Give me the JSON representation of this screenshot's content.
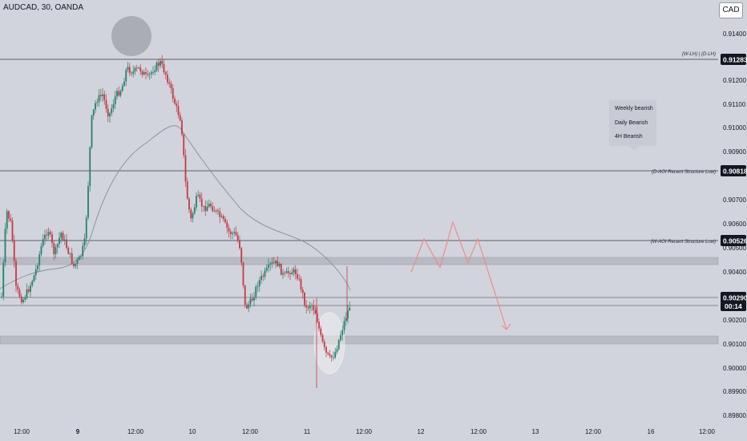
{
  "header": {
    "symbol_line": "AUDCAD, 30, OANDA",
    "currency_button": "CAD"
  },
  "colors": {
    "background": "#d1d4dc",
    "candle_up": "#26806b",
    "candle_down": "#c43a43",
    "moving_average": "#8a8d94",
    "zone_fill": "#b2b5be",
    "price_badge": "#131722",
    "projection_path": "#f28b8b",
    "highlight_circle": "#a3a6ad",
    "highlight_ellipse": "#f0f1f4"
  },
  "price_axis": {
    "ticks": [
      "0.91400",
      "0.91200",
      "0.91100",
      "0.91000",
      "0.90900",
      "0.90700",
      "0.90600",
      "0.90500",
      "0.90400",
      "0.90200",
      "0.90100",
      "0.90000",
      "0.89900",
      "0.89800"
    ],
    "current_price": "0.90290",
    "countdown": "00:14"
  },
  "time_axis": {
    "ticks": [
      "12:00",
      "9",
      "12:00",
      "10",
      "12:00",
      "11",
      "12:00",
      "12",
      "12:00",
      "13",
      "12:00",
      "16",
      "12:00"
    ]
  },
  "horizontal_lines": [
    {
      "label": "(W-LH) | (D-LH)",
      "price": "0.91283"
    },
    {
      "label": "(D-AOI Recent Structure Low)",
      "price": "0.90818"
    },
    {
      "label": "(W-AOI Recent Structure Low)",
      "price": "0.90526"
    }
  ],
  "zones": [
    {
      "from": 0.90448,
      "to": 0.90465
    },
    {
      "from": 0.90118,
      "to": 0.90135
    }
  ],
  "bias_note": [
    "Weekly bearish",
    "Daily Bearish",
    "4H Bearish"
  ],
  "chart_data": {
    "type": "candlestick",
    "symbol": "AUDCAD",
    "timeframe": "30",
    "source": "OANDA",
    "ylim": [
      0.8978,
      0.9147
    ],
    "projection_path": [
      {
        "x": "12 ~02:00",
        "y": 0.904
      },
      {
        "x": "12 ~06:00",
        "y": 0.9054
      },
      {
        "x": "12 ~09:00",
        "y": 0.9042
      },
      {
        "x": "12 ~14:00",
        "y": 0.9061
      },
      {
        "x": "12 ~17:00",
        "y": 0.9044
      },
      {
        "x": "12 ~20:00",
        "y": 0.9054
      },
      {
        "x": "13 ~03:00",
        "y": 0.9016
      }
    ]
  }
}
